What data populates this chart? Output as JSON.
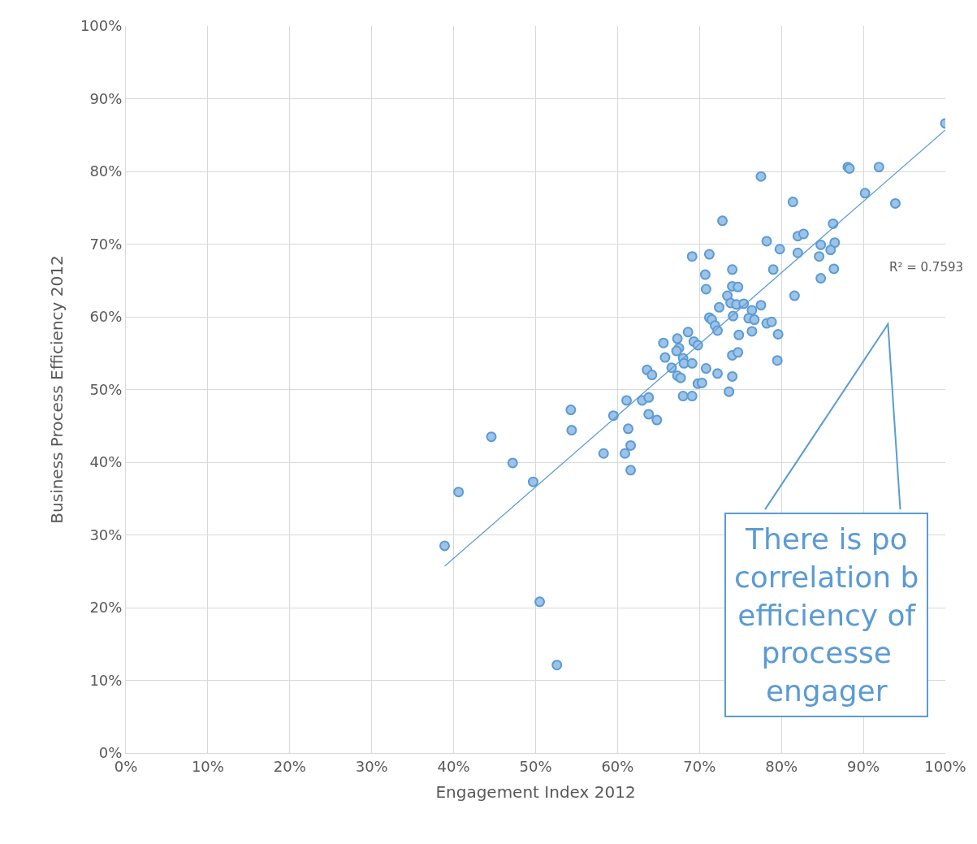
{
  "chart_data": {
    "type": "scatter",
    "xlabel": "Engagement Index 2012",
    "ylabel": "Business Process Efficiency 2012",
    "xlim": [
      0,
      100
    ],
    "ylim": [
      0,
      100
    ],
    "xticks": [
      {
        "value": 0,
        "label": "0%"
      },
      {
        "value": 10,
        "label": "10%"
      },
      {
        "value": 20,
        "label": "20%"
      },
      {
        "value": 30,
        "label": "30%"
      },
      {
        "value": 40,
        "label": "40%"
      },
      {
        "value": 50,
        "label": "50%"
      },
      {
        "value": 60,
        "label": "60%"
      },
      {
        "value": 70,
        "label": "70%"
      },
      {
        "value": 80,
        "label": "80%"
      },
      {
        "value": 90,
        "label": "90%"
      },
      {
        "value": 100,
        "label": "100%"
      }
    ],
    "yticks": [
      {
        "value": 0,
        "label": "0%"
      },
      {
        "value": 10,
        "label": "10%"
      },
      {
        "value": 20,
        "label": "20%"
      },
      {
        "value": 30,
        "label": "30%"
      },
      {
        "value": 40,
        "label": "40%"
      },
      {
        "value": 50,
        "label": "50%"
      },
      {
        "value": 60,
        "label": "60%"
      },
      {
        "value": 70,
        "label": "70%"
      },
      {
        "value": 80,
        "label": "80%"
      },
      {
        "value": 90,
        "label": "90%"
      },
      {
        "value": 100,
        "label": "100%"
      }
    ],
    "grid": true,
    "series": [
      {
        "marker": "circle",
        "color": "#9dc3e6",
        "x": [
          38.9,
          40.6,
          44.6,
          47.2,
          49.7,
          50.5,
          52.6,
          54.3,
          54.4,
          58.3,
          59.5,
          60.9,
          61.1,
          61.3,
          61.6,
          61.6,
          63.0,
          63.6,
          63.8,
          63.8,
          64.2,
          64.8,
          77.5,
          81.4,
          72.8,
          78.2,
          79.8,
          69.1,
          71.2,
          74.0,
          79.0,
          70.7,
          70.8,
          74.0,
          74.7,
          73.4,
          81.6,
          72.4,
          73.8,
          74.5,
          75.4,
          77.5,
          76.4,
          74.1,
          71.2,
          71.5,
          76.0,
          76.7,
          78.2,
          78.8,
          71.9,
          72.2,
          68.6,
          74.8,
          76.4,
          79.6,
          65.6,
          67.3,
          67.5,
          67.2,
          69.3,
          69.8,
          65.8,
          68.0,
          68.1,
          69.1,
          74.0,
          74.7,
          79.5,
          66.6,
          67.3,
          67.7,
          70.8,
          72.2,
          74.0,
          69.8,
          70.3,
          73.6,
          68.0,
          69.1,
          100,
          88.1,
          88.3,
          91.9,
          90.2,
          93.9,
          86.3,
          82.0,
          82.7,
          84.8,
          86.5,
          86.0,
          82.0,
          84.6,
          86.4,
          84.8
        ],
        "values": [
          28.5,
          35.9,
          43.5,
          39.9,
          37.3,
          20.8,
          12.1,
          47.2,
          44.4,
          41.2,
          46.4,
          41.2,
          48.5,
          44.6,
          42.3,
          38.9,
          48.5,
          52.7,
          48.9,
          46.6,
          52.0,
          45.8,
          79.3,
          75.8,
          73.2,
          70.4,
          69.3,
          68.3,
          68.6,
          66.5,
          66.5,
          65.8,
          63.8,
          64.2,
          64.1,
          62.9,
          62.9,
          61.3,
          61.9,
          61.7,
          61.8,
          61.6,
          60.9,
          60.1,
          59.9,
          59.6,
          59.8,
          59.6,
          59.1,
          59.3,
          58.8,
          58.1,
          57.9,
          57.5,
          58.0,
          57.6,
          56.4,
          57.0,
          55.7,
          55.3,
          56.6,
          56.1,
          54.4,
          54.3,
          53.6,
          53.6,
          54.7,
          55.1,
          54.0,
          53.0,
          51.9,
          51.6,
          52.9,
          52.2,
          51.8,
          50.8,
          50.9,
          49.7,
          49.1,
          49.1,
          86.6,
          80.6,
          80.4,
          80.6,
          77.0,
          75.6,
          72.8,
          71.1,
          71.4,
          69.9,
          70.2,
          69.2,
          68.8,
          68.3,
          66.6,
          65.3
        ]
      },
      {
        "type": "line",
        "color": "#5b9bd5",
        "x": [
          38.9,
          100
        ],
        "values": [
          25.7,
          85.7
        ]
      }
    ],
    "annotations": [
      "R² = 0.7593",
      "There is po\ncorrelation b\nefficiency of\nprocesse\nengager"
    ]
  }
}
